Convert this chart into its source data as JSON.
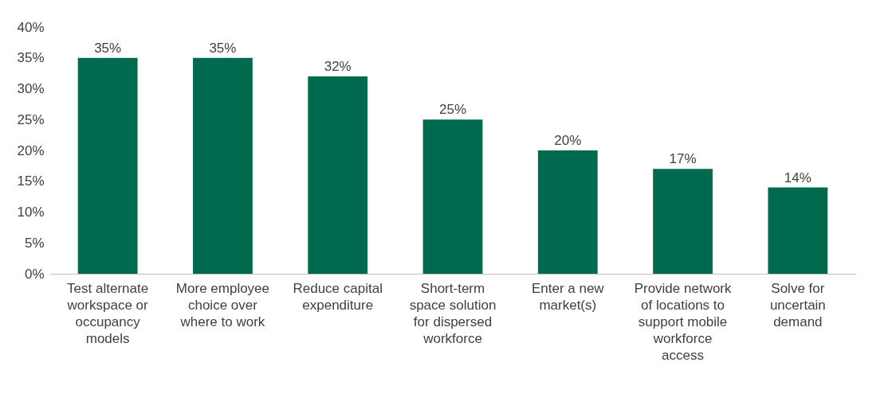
{
  "chart_data": {
    "type": "bar",
    "categories": [
      "Test alternate workspace or occupancy models",
      "More employee choice over where to work",
      "Reduce capital expenditure",
      "Short-term space solution for dispersed workforce",
      "Enter a new market(s)",
      "Provide network of locations to support mobile workforce access",
      "Solve for uncertain demand"
    ],
    "values": [
      35,
      35,
      32,
      25,
      20,
      17,
      14
    ],
    "value_labels": [
      "35%",
      "35%",
      "32%",
      "25%",
      "20%",
      "17%",
      "14%"
    ],
    "color": "#006a4e",
    "ylim": [
      0,
      40
    ],
    "yticks": [
      {
        "value": 0,
        "label": "0%"
      },
      {
        "value": 5,
        "label": "5%"
      },
      {
        "value": 10,
        "label": "10%"
      },
      {
        "value": 15,
        "label": "15%"
      },
      {
        "value": 20,
        "label": "20%"
      },
      {
        "value": 25,
        "label": "25%"
      },
      {
        "value": 30,
        "label": "30%"
      },
      {
        "value": 35,
        "label": "35%"
      },
      {
        "value": 40,
        "label": "40%"
      }
    ],
    "grid": false
  }
}
